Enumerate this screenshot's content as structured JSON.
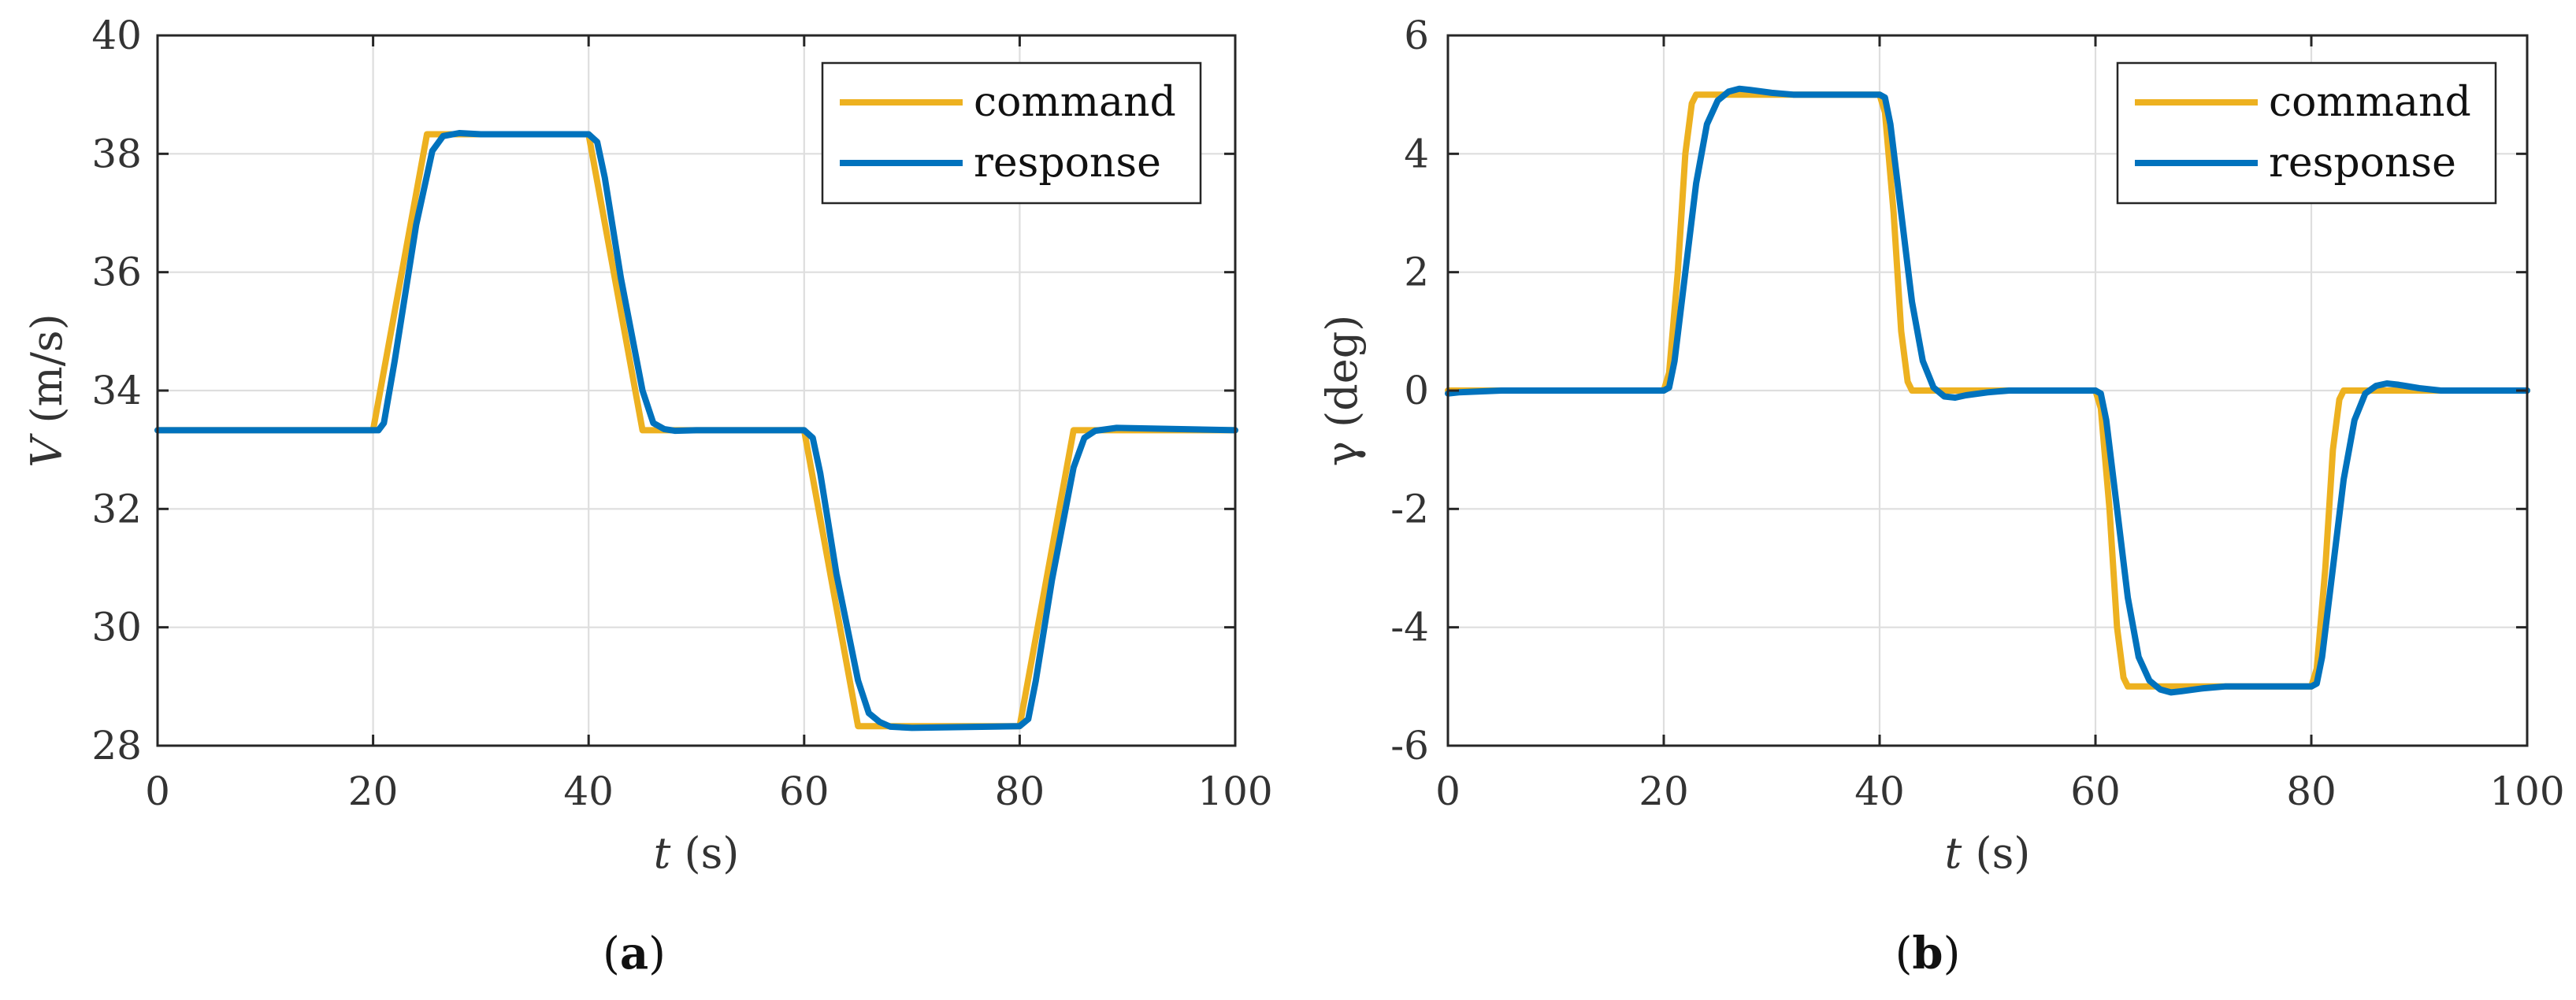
{
  "colors": {
    "command": "#EDB120",
    "response": "#0072BD",
    "grid": "#dedede",
    "axis": "#262626"
  },
  "chart_data": [
    {
      "type": "line",
      "title": "",
      "caption": {
        "open": "(",
        "letter": "a",
        "close": ")"
      },
      "xlabel": {
        "var": "t",
        "unit": "(s)"
      },
      "ylabel": {
        "var": "V",
        "unit": "(m/s)"
      },
      "xlim": [
        0,
        100
      ],
      "ylim": [
        28,
        40
      ],
      "xticks": [
        0,
        20,
        40,
        60,
        80,
        100
      ],
      "xtick_labels": [
        "0",
        "20",
        "40",
        "60",
        "80",
        "100"
      ],
      "yticks": [
        28,
        30,
        32,
        34,
        36,
        38,
        40
      ],
      "ytick_labels": [
        "28",
        "30",
        "32",
        "34",
        "36",
        "38",
        "40"
      ],
      "grid": true,
      "legend_position": "top-right",
      "series": [
        {
          "name": "command",
          "color": "#EDB120",
          "x": [
            0,
            20,
            25,
            40,
            45,
            60,
            65,
            80,
            85,
            100
          ],
          "y": [
            33.33,
            33.33,
            38.33,
            38.33,
            33.33,
            33.33,
            28.33,
            28.33,
            33.33,
            33.33
          ]
        },
        {
          "name": "response",
          "color": "#0072BD",
          "x": [
            0,
            20.5,
            21,
            22,
            24,
            25.5,
            26.5,
            28,
            30,
            40,
            40.8,
            41.5,
            43,
            45,
            46,
            47,
            48,
            50,
            60,
            60.8,
            61.5,
            63,
            65,
            66,
            67,
            68,
            70,
            80,
            80.8,
            81.5,
            83,
            85,
            86,
            87,
            89,
            100
          ],
          "y": [
            33.33,
            33.33,
            33.45,
            34.5,
            36.8,
            38.05,
            38.3,
            38.35,
            38.33,
            38.33,
            38.2,
            37.6,
            35.9,
            34.0,
            33.45,
            33.35,
            33.32,
            33.33,
            33.33,
            33.2,
            32.6,
            30.9,
            29.1,
            28.55,
            28.4,
            28.32,
            28.3,
            28.33,
            28.45,
            29.1,
            30.8,
            32.7,
            33.2,
            33.32,
            33.37,
            33.33
          ]
        }
      ]
    },
    {
      "type": "line",
      "title": "",
      "caption": {
        "open": "(",
        "letter": "b",
        "close": ")"
      },
      "xlabel": {
        "var": "t",
        "unit": "(s)"
      },
      "ylabel": {
        "var": "γ",
        "unit": "(deg)"
      },
      "xlim": [
        0,
        100
      ],
      "ylim": [
        -6,
        6
      ],
      "xticks": [
        0,
        20,
        40,
        60,
        80,
        100
      ],
      "xtick_labels": [
        "0",
        "20",
        "40",
        "60",
        "80",
        "100"
      ],
      "yticks": [
        -6,
        -4,
        -2,
        0,
        2,
        4,
        6
      ],
      "ytick_labels": [
        "-6",
        "-4",
        "-2",
        "0",
        "2",
        "4",
        "6"
      ],
      "grid": true,
      "legend_position": "top-right",
      "series": [
        {
          "name": "command",
          "color": "#EDB120",
          "x": [
            0,
            20,
            20.5,
            21.3,
            22,
            22.6,
            23,
            40,
            40.5,
            41.3,
            42,
            42.6,
            43,
            60,
            60.5,
            61.3,
            62,
            62.6,
            63,
            80,
            80.5,
            81.3,
            82,
            82.6,
            83,
            100
          ],
          "y": [
            0,
            0,
            0.3,
            2.0,
            4.0,
            4.85,
            5,
            5,
            4.7,
            3.0,
            1.0,
            0.15,
            0,
            0,
            -0.3,
            -2.0,
            -4.0,
            -4.85,
            -5,
            -5,
            -4.7,
            -3.0,
            -1.0,
            -0.15,
            0,
            0
          ]
        },
        {
          "name": "response",
          "color": "#0072BD",
          "x": [
            0,
            1,
            5,
            20,
            20.5,
            21,
            22,
            23,
            24,
            25,
            26,
            27,
            28,
            30,
            32,
            35,
            40,
            40.5,
            41,
            42,
            43,
            44,
            45,
            46,
            47,
            48,
            50,
            52,
            55,
            60,
            60.5,
            61,
            62,
            63,
            64,
            65,
            66,
            67,
            68,
            70,
            72,
            75,
            80,
            80.5,
            81,
            82,
            83,
            84,
            85,
            86,
            87,
            88,
            90,
            92,
            95,
            100
          ],
          "y": [
            -0.05,
            -0.03,
            0,
            0,
            0.05,
            0.5,
            2.0,
            3.5,
            4.5,
            4.9,
            5.05,
            5.1,
            5.08,
            5.03,
            5.0,
            5.0,
            5.0,
            4.95,
            4.5,
            3.0,
            1.5,
            0.5,
            0.05,
            -0.1,
            -0.12,
            -0.08,
            -0.03,
            0,
            0,
            0,
            -0.05,
            -0.5,
            -2.0,
            -3.5,
            -4.5,
            -4.9,
            -5.05,
            -5.1,
            -5.08,
            -5.03,
            -5.0,
            -5.0,
            -5.0,
            -4.95,
            -4.5,
            -3.0,
            -1.5,
            -0.5,
            -0.05,
            0.08,
            0.12,
            0.1,
            0.04,
            0,
            0,
            0
          ]
        }
      ]
    }
  ]
}
